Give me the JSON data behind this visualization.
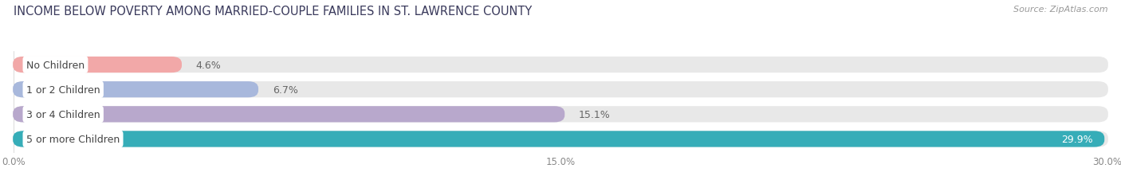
{
  "title": "INCOME BELOW POVERTY AMONG MARRIED-COUPLE FAMILIES IN ST. LAWRENCE COUNTY",
  "source": "Source: ZipAtlas.com",
  "categories": [
    "No Children",
    "1 or 2 Children",
    "3 or 4 Children",
    "5 or more Children"
  ],
  "values": [
    4.6,
    6.7,
    15.1,
    29.9
  ],
  "bar_colors": [
    "#f2a8a8",
    "#a8b8dc",
    "#b8a8cc",
    "#36adb8"
  ],
  "bg_bar_color": "#e8e8e8",
  "x_max": 30.0,
  "x_ticks": [
    0.0,
    15.0,
    30.0
  ],
  "x_tick_labels": [
    "0.0%",
    "15.0%",
    "30.0%"
  ],
  "title_fontsize": 10.5,
  "source_fontsize": 8,
  "label_fontsize": 9,
  "value_fontsize": 9,
  "bar_height": 0.62,
  "bar_gap": 1.0,
  "background_color": "#ffffff",
  "value_inside_threshold": 25.0
}
